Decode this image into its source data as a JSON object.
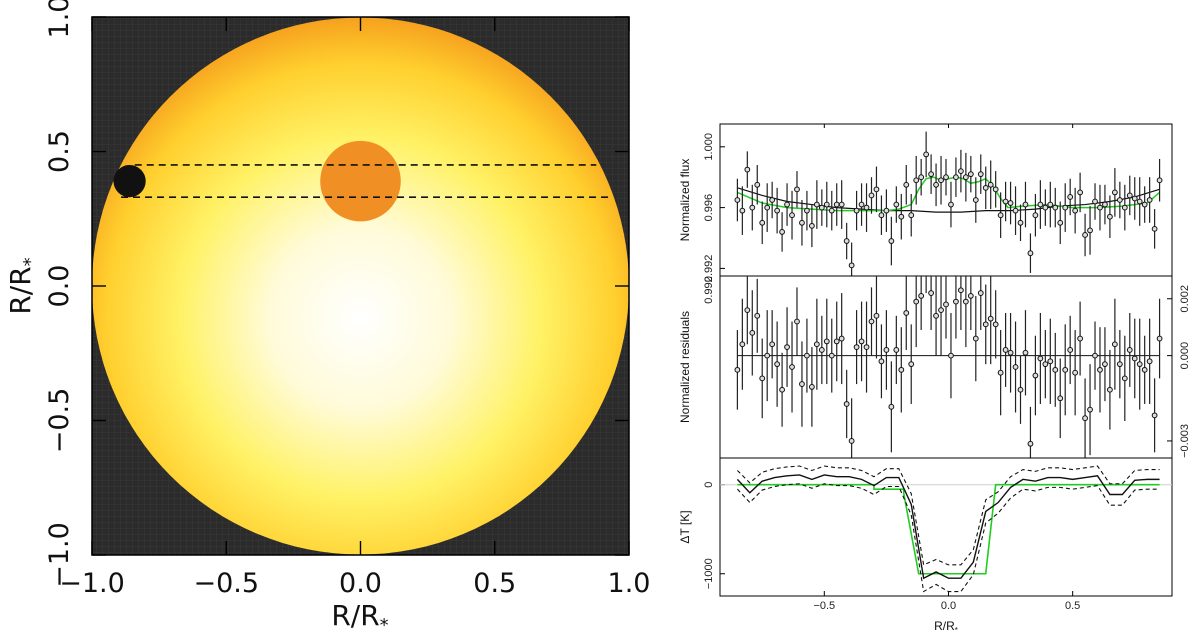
{
  "colors": {
    "background_dark": "#2a2a2a",
    "star_center": "#ffffff",
    "star_mid": "#fff176",
    "star_edge": "#f7a825",
    "spot": "#ef8f24",
    "planet": "#111111",
    "model_green": "#22cc22",
    "model_black": "#111111"
  },
  "chart_data": [
    {
      "id": "stellar-disk",
      "type": "image",
      "xlabel": "R/R*",
      "ylabel": "R/R*",
      "xlim": [
        -1.0,
        1.0
      ],
      "ylim": [
        -1.0,
        1.0
      ],
      "xticks": [
        -1.0,
        -0.5,
        0.0,
        0.5,
        1.0
      ],
      "xtick_labels": [
        "−1.0",
        "−0.5",
        "0.0",
        "0.5",
        "1.0"
      ],
      "yticks": [
        -1.0,
        -0.5,
        0.0,
        0.5,
        1.0
      ],
      "ytick_labels": [
        "−1.0",
        "−0.5",
        "0.0",
        "0.5",
        "1.0"
      ],
      "spot": {
        "x": 0.0,
        "y": 0.39,
        "r": 0.15
      },
      "planet": {
        "x": -0.86,
        "y": 0.39,
        "r": 0.06
      },
      "transit_chord": {
        "y_upper": 0.45,
        "y_lower": 0.33
      }
    },
    {
      "id": "flux-panel",
      "type": "scatter",
      "ylabel": "Normalized flux",
      "xlim": [
        -0.92,
        0.9
      ],
      "ylim": [
        0.9915,
        1.0015
      ],
      "yticks": [
        0.992,
        0.996,
        1.0
      ],
      "ytick_labels": [
        "0.992",
        "0.996",
        "1.000"
      ],
      "x": [
        -0.85,
        -0.83,
        -0.81,
        -0.79,
        -0.77,
        -0.75,
        -0.73,
        -0.71,
        -0.69,
        -0.67,
        -0.65,
        -0.63,
        -0.61,
        -0.59,
        -0.57,
        -0.55,
        -0.53,
        -0.51,
        -0.49,
        -0.47,
        -0.45,
        -0.43,
        -0.41,
        -0.39,
        -0.37,
        -0.35,
        -0.33,
        -0.31,
        -0.29,
        -0.27,
        -0.25,
        -0.23,
        -0.21,
        -0.19,
        -0.17,
        -0.15,
        -0.13,
        -0.11,
        -0.09,
        -0.07,
        -0.05,
        -0.03,
        -0.01,
        0.01,
        0.03,
        0.05,
        0.07,
        0.09,
        0.11,
        0.13,
        0.15,
        0.17,
        0.19,
        0.21,
        0.23,
        0.25,
        0.27,
        0.29,
        0.31,
        0.33,
        0.35,
        0.37,
        0.39,
        0.41,
        0.43,
        0.45,
        0.47,
        0.49,
        0.51,
        0.53,
        0.55,
        0.57,
        0.59,
        0.61,
        0.63,
        0.65,
        0.67,
        0.69,
        0.71,
        0.73,
        0.75,
        0.77,
        0.79,
        0.81,
        0.83,
        0.85
      ],
      "y": [
        0.9965,
        0.9958,
        0.9985,
        0.996,
        0.9975,
        0.995,
        0.996,
        0.9965,
        0.9958,
        0.9944,
        0.9962,
        0.9955,
        0.9972,
        0.995,
        0.9958,
        0.9948,
        0.9962,
        0.996,
        0.9962,
        0.9958,
        0.9962,
        0.9962,
        0.9938,
        0.9922,
        0.9958,
        0.9962,
        0.996,
        0.9968,
        0.9972,
        0.9955,
        0.9958,
        0.9938,
        0.9962,
        0.9954,
        0.9975,
        0.9955,
        0.9978,
        0.998,
        0.9995,
        0.9982,
        0.9975,
        0.9978,
        0.998,
        0.9962,
        0.998,
        0.9984,
        0.998,
        0.9982,
        0.9965,
        0.9982,
        0.9973,
        0.9975,
        0.9972,
        0.9955,
        0.9964,
        0.9963,
        0.9958,
        0.995,
        0.9962,
        0.993,
        0.9955,
        0.9962,
        0.996,
        0.9962,
        0.996,
        0.995,
        0.996,
        0.9967,
        0.9958,
        0.997,
        0.9942,
        0.9945,
        0.9964,
        0.996,
        0.9962,
        0.9954,
        0.997,
        0.9965,
        0.996,
        0.9968,
        0.9966,
        0.9964,
        0.9962,
        0.9965,
        0.9946,
        0.9978
      ],
      "err": [
        0.0014,
        0.0016,
        0.0012,
        0.0015,
        0.0013,
        0.0014,
        0.0016,
        0.0012,
        0.0015,
        0.0013,
        0.0014,
        0.0016,
        0.0012,
        0.0015,
        0.0013,
        0.0014,
        0.0016,
        0.0012,
        0.0015,
        0.0013,
        0.0014,
        0.0016,
        0.0012,
        0.0015,
        0.0013,
        0.0014,
        0.0016,
        0.0012,
        0.0015,
        0.0013,
        0.0014,
        0.0016,
        0.0012,
        0.0015,
        0.0013,
        0.0014,
        0.0016,
        0.0012,
        0.0015,
        0.0013,
        0.0014,
        0.0016,
        0.0012,
        0.0015,
        0.0013,
        0.0014,
        0.0016,
        0.0012,
        0.0015,
        0.0013,
        0.0014,
        0.0016,
        0.0012,
        0.0015,
        0.0013,
        0.0014,
        0.0016,
        0.0012,
        0.0015,
        0.0013,
        0.0014,
        0.0016,
        0.0012,
        0.0015,
        0.0013,
        0.0014,
        0.0016,
        0.0012,
        0.0015,
        0.0013,
        0.0014,
        0.0016,
        0.0012,
        0.0015,
        0.0013,
        0.0014,
        0.0016,
        0.0012,
        0.0015,
        0.0013,
        0.0014,
        0.0016,
        0.0012,
        0.0015,
        0.0013,
        0.0014
      ],
      "model_black": {
        "x": [
          -0.85,
          -0.75,
          -0.65,
          -0.55,
          -0.45,
          -0.35,
          -0.25,
          -0.15,
          -0.05,
          0.05,
          0.15,
          0.25,
          0.35,
          0.45,
          0.55,
          0.65,
          0.75,
          0.85
        ],
        "y": [
          0.9973,
          0.9968,
          0.9964,
          0.9962,
          0.996,
          0.9959,
          0.9958,
          0.9958,
          0.9957,
          0.9957,
          0.9958,
          0.9958,
          0.9959,
          0.9961,
          0.9962,
          0.9964,
          0.9967,
          0.9972
        ]
      },
      "model_green": {
        "x": [
          -0.85,
          -0.75,
          -0.65,
          -0.55,
          -0.45,
          -0.35,
          -0.25,
          -0.2,
          -0.15,
          -0.12,
          -0.09,
          -0.06,
          -0.03,
          0.0,
          0.03,
          0.06,
          0.09,
          0.12,
          0.15,
          0.18,
          0.21,
          0.24,
          0.3,
          0.4,
          0.5,
          0.6,
          0.7,
          0.8,
          0.85
        ],
        "y": [
          0.997,
          0.9963,
          0.996,
          0.9959,
          0.9958,
          0.9958,
          0.9958,
          0.9959,
          0.9962,
          0.9972,
          0.9979,
          0.998,
          0.9978,
          0.9979,
          0.998,
          0.9979,
          0.9976,
          0.9977,
          0.9979,
          0.9974,
          0.9966,
          0.996,
          0.9961,
          0.9962,
          0.996,
          0.996,
          0.9961,
          0.9963,
          0.997
        ]
      }
    },
    {
      "id": "residual-panel",
      "type": "scatter",
      "ylabel": "Normalized residuals",
      "xlim": [
        -0.92,
        0.9
      ],
      "ylim": [
        -0.0036,
        0.0028
      ],
      "yticks": [
        -0.003,
        0.0,
        0.002
      ],
      "ytick_labels": [
        "−0.003",
        "0.000",
        "0.002"
      ],
      "left_tick_label": "0.992",
      "y": [
        -0.0005,
        0.0004,
        0.0016,
        0.0008,
        0.0014,
        -0.0008,
        0.0,
        0.0004,
        -0.0003,
        -0.0012,
        0.0003,
        -0.0004,
        0.0012,
        -0.001,
        0.0,
        -0.0011,
        0.0004,
        0.0002,
        0.0005,
        0.0,
        0.0005,
        0.0006,
        -0.0017,
        -0.003,
        0.0003,
        0.0005,
        0.0003,
        0.0012,
        0.0014,
        -0.0002,
        0.0002,
        -0.0018,
        0.0002,
        -0.0005,
        0.0015,
        -0.0003,
        0.0019,
        0.0021,
        0.0037,
        0.0022,
        0.0014,
        0.0016,
        0.0018,
        0.0,
        0.0019,
        0.0023,
        0.0019,
        0.0021,
        0.0006,
        0.0022,
        0.0011,
        0.0013,
        0.0011,
        -0.0006,
        0.0002,
        0.0001,
        -0.0004,
        -0.0012,
        0.0001,
        -0.0031,
        -0.0007,
        -0.0001,
        -0.0003,
        -0.0002,
        -0.0005,
        -0.0015,
        -0.0005,
        0.0002,
        -0.0006,
        0.0006,
        -0.0022,
        -0.0019,
        0.0,
        -0.0005,
        -0.0003,
        -0.0012,
        0.0004,
        -0.0003,
        -0.0008,
        0.0002,
        -0.0001,
        -0.0003,
        -0.0005,
        -0.0002,
        -0.0021,
        0.0006
      ],
      "zero_line": 0.0
    },
    {
      "id": "temperature-panel",
      "type": "line",
      "xlabel": "R/R*",
      "ylabel": "ΔT [K]",
      "xlim": [
        -0.92,
        0.9
      ],
      "ylim": [
        -1250,
        300
      ],
      "xticks": [
        -0.5,
        0.0,
        0.5
      ],
      "xtick_labels": [
        "−0.5",
        "0.0",
        "0.5"
      ],
      "yticks": [
        -1000,
        0
      ],
      "ytick_labels": [
        "−1000",
        "0"
      ],
      "x": [
        -0.85,
        -0.8,
        -0.75,
        -0.7,
        -0.65,
        -0.6,
        -0.55,
        -0.5,
        -0.45,
        -0.4,
        -0.35,
        -0.3,
        -0.25,
        -0.2,
        -0.15,
        -0.1,
        -0.05,
        0.0,
        0.05,
        0.1,
        0.15,
        0.2,
        0.25,
        0.3,
        0.35,
        0.4,
        0.45,
        0.5,
        0.55,
        0.6,
        0.65,
        0.7,
        0.75,
        0.8,
        0.85
      ],
      "temp": [
        60,
        -90,
        40,
        80,
        100,
        110,
        60,
        110,
        90,
        90,
        60,
        -10,
        80,
        80,
        -220,
        -1050,
        -980,
        -1050,
        -1050,
        -870,
        -300,
        -200,
        -30,
        60,
        40,
        80,
        80,
        60,
        80,
        100,
        -110,
        -110,
        50,
        60,
        60
      ],
      "temp_upper": [
        160,
        20,
        140,
        180,
        200,
        210,
        160,
        210,
        190,
        190,
        160,
        90,
        180,
        180,
        -100,
        -900,
        -840,
        -900,
        -900,
        -730,
        -170,
        -80,
        90,
        170,
        150,
        190,
        190,
        170,
        190,
        210,
        10,
        10,
        160,
        170,
        170
      ],
      "temp_lower": [
        -50,
        -200,
        -60,
        -20,
        0,
        10,
        -40,
        10,
        -10,
        -10,
        -40,
        -110,
        -20,
        -20,
        -340,
        -1200,
        -1120,
        -1200,
        -1200,
        -1010,
        -430,
        -320,
        -150,
        -50,
        -70,
        -30,
        -30,
        -50,
        -30,
        -10,
        -230,
        -230,
        -60,
        -50,
        -50
      ],
      "model_green": {
        "x": [
          -0.85,
          -0.3,
          -0.3,
          -0.18,
          -0.18,
          -0.12,
          -0.12,
          0.15,
          0.19,
          0.5,
          0.8,
          0.85
        ],
        "y": [
          0,
          0,
          -50,
          -50,
          -100,
          -1000,
          -1000,
          -1000,
          0,
          0,
          0,
          0
        ]
      }
    }
  ]
}
